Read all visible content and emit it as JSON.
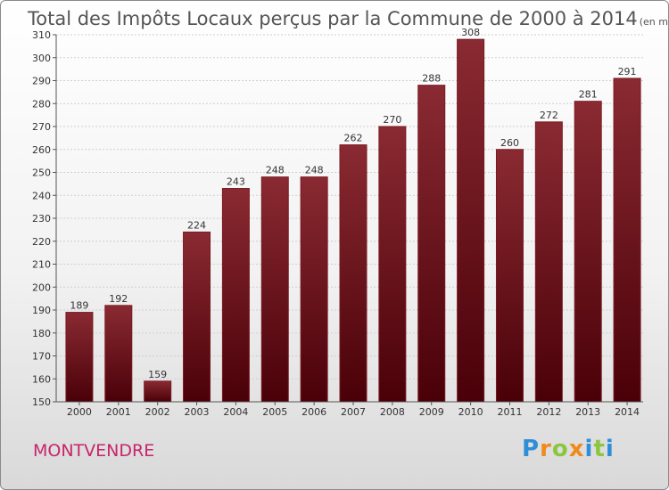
{
  "title": "Total des Impôts Locaux perçus par la Commune de 2000 à 2014",
  "title_unit": "(en milliers d'€)",
  "commune": "MONTVENDRE",
  "logo": {
    "letters": [
      "P",
      "r",
      "o",
      "x",
      "i",
      "t",
      "i"
    ],
    "colors": [
      "#2e8fd8",
      "#f08a1c",
      "#8cc63f",
      "#f08a1c",
      "#2e8fd8",
      "#8cc63f",
      "#2e8fd8"
    ]
  },
  "bar_color": "#7a1a22",
  "chart_data": {
    "type": "bar",
    "categories": [
      "2000",
      "2001",
      "2002",
      "2003",
      "2004",
      "2005",
      "2006",
      "2007",
      "2008",
      "2009",
      "2010",
      "2011",
      "2012",
      "2013",
      "2014"
    ],
    "values": [
      189,
      192,
      159,
      224,
      243,
      248,
      248,
      262,
      270,
      288,
      308,
      260,
      272,
      281,
      291
    ],
    "data_labels": [
      "189",
      "192",
      "159",
      "224",
      "243",
      "248",
      "248",
      "262",
      "270",
      "288",
      "308",
      "260",
      "272",
      "281",
      "291"
    ],
    "yticks": [
      "150",
      "160",
      "170",
      "180",
      "190",
      "200",
      "210",
      "220",
      "230",
      "240",
      "250",
      "260",
      "270",
      "280",
      "290",
      "300",
      "310"
    ],
    "ylim": [
      150,
      310
    ],
    "grid": true,
    "legend": "none"
  }
}
